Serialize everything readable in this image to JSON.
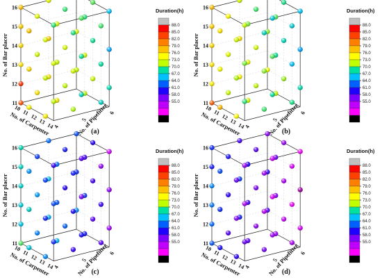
{
  "chart_data": [
    {
      "type": "scatter",
      "panel_label": "(a)",
      "zlabel": "No. of Bar placer",
      "xlabel": "No. of Carpenter",
      "ylabel": "No. of Pipefitter",
      "z_ticks": [
        "11",
        "12",
        "13",
        "14",
        "15",
        "16"
      ],
      "x_ticks": [
        "10",
        "11",
        "12",
        "13",
        "14"
      ],
      "y_ticks": [
        "4",
        "5",
        "6"
      ],
      "colorbar": {
        "title": "Duration(h)",
        "ticks": [
          "88.0",
          "85.0",
          "82.0",
          "79.0",
          "76.0",
          "73.0",
          "70.0",
          "67.0",
          "64.0",
          "61.0",
          "58.0",
          "55.0"
        ]
      },
      "points_note": "point grid: carpenter 10-14 x pipefitter 4-6 x bar placer 11-16; value = estimated duration (h)"
    },
    {
      "type": "scatter",
      "panel_label": "(b)",
      "zlabel": "No. of Bar placer",
      "xlabel": "No. of Carpenter",
      "ylabel": "No. of Pipefitter",
      "z_ticks": [
        "11",
        "12",
        "13",
        "14",
        "15",
        "16"
      ],
      "x_ticks": [
        "10",
        "11",
        "12",
        "13",
        "14"
      ],
      "y_ticks": [
        "4",
        "5",
        "6"
      ],
      "colorbar": {
        "title": "Duration(h)",
        "ticks": [
          "88.0",
          "85.0",
          "82.0",
          "79.0",
          "76.0",
          "73.0",
          "70.0",
          "67.0",
          "64.0",
          "61.0",
          "58.0",
          "55.0"
        ]
      }
    },
    {
      "type": "scatter",
      "panel_label": "(c)",
      "zlabel": "No. of Bar placer",
      "xlabel": "No. of Carpenter",
      "ylabel": "No. of Pipefitter",
      "z_ticks": [
        "11",
        "12",
        "13",
        "14",
        "15",
        "16"
      ],
      "x_ticks": [
        "10",
        "11",
        "12",
        "13",
        "14"
      ],
      "y_ticks": [
        "4",
        "5",
        "6"
      ],
      "colorbar": {
        "title": "Duration(h)",
        "ticks": [
          "88.0",
          "85.0",
          "82.0",
          "79.0",
          "76.0",
          "73.0",
          "70.0",
          "67.0",
          "64.0",
          "61.0",
          "58.0",
          "55.0"
        ]
      }
    },
    {
      "type": "scatter",
      "panel_label": "(d)",
      "zlabel": "No. of Bar placer",
      "xlabel": "No. of Carpenter",
      "ylabel": "No. of Pipefitter",
      "z_ticks": [
        "11",
        "12",
        "13",
        "14",
        "15",
        "16"
      ],
      "x_ticks": [
        "10",
        "11",
        "12",
        "13",
        "14"
      ],
      "y_ticks": [
        "4",
        "5",
        "6"
      ],
      "colorbar": {
        "title": "Duration(h)",
        "ticks": [
          "88.0",
          "85.0",
          "82.0",
          "79.0",
          "76.0",
          "73.0",
          "70.0",
          "67.0",
          "64.0",
          "61.0",
          "58.0",
          "55.0"
        ]
      }
    }
  ],
  "colors": {
    "scale": [
      "#c0c0c0",
      "#ff0000",
      "#ff4000",
      "#ff8000",
      "#ffc000",
      "#ffff00",
      "#c0ff00",
      "#00e0a0",
      "#00c0ff",
      "#0060ff",
      "#2000ff",
      "#8000ff",
      "#c000ff",
      "#ff00ff",
      "#000000"
    ]
  }
}
